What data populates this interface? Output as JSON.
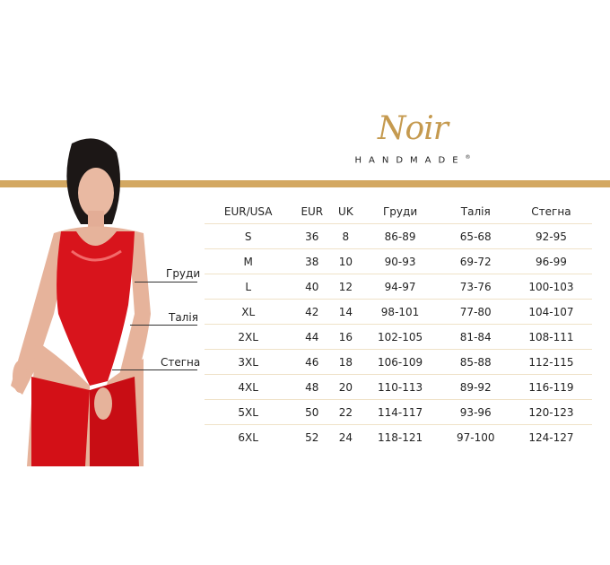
{
  "brand": {
    "script": "Noir",
    "sub": "HANDMADE",
    "mark": "®",
    "accent": "#d3a862"
  },
  "measure_labels": {
    "bust": "Груди",
    "waist": "Талія",
    "hips": "Стегна"
  },
  "table": {
    "headers": [
      "EUR/USA",
      "EUR",
      "UK",
      "Груди",
      "Талія",
      "Стегна"
    ],
    "rows": [
      [
        "S",
        "36",
        "8",
        "86-89",
        "65-68",
        "92-95"
      ],
      [
        "M",
        "38",
        "10",
        "90-93",
        "69-72",
        "96-99"
      ],
      [
        "L",
        "40",
        "12",
        "94-97",
        "73-76",
        "100-103"
      ],
      [
        "XL",
        "42",
        "14",
        "98-101",
        "77-80",
        "104-107"
      ],
      [
        "2XL",
        "44",
        "16",
        "102-105",
        "81-84",
        "108-111"
      ],
      [
        "3XL",
        "46",
        "18",
        "106-109",
        "85-88",
        "112-115"
      ],
      [
        "4XL",
        "48",
        "20",
        "110-113",
        "89-92",
        "116-119"
      ],
      [
        "5XL",
        "50",
        "22",
        "114-117",
        "93-96",
        "120-123"
      ],
      [
        "6XL",
        "52",
        "24",
        "118-121",
        "97-100",
        "124-127"
      ]
    ]
  }
}
